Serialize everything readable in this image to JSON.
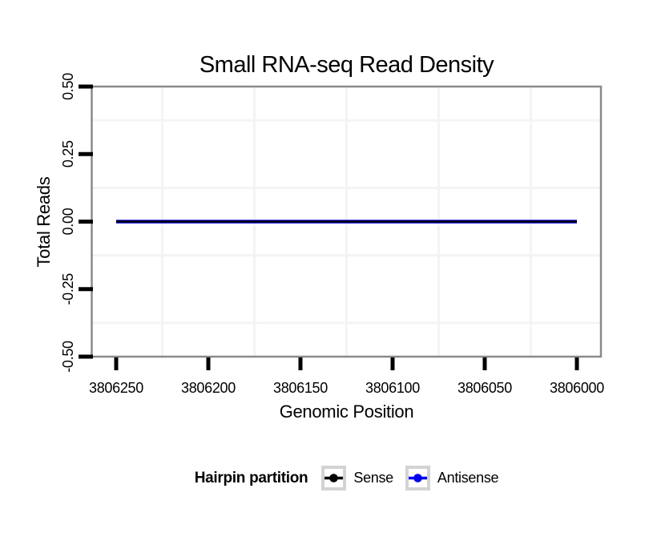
{
  "chart_data": {
    "type": "line",
    "title": "Small RNA-seq Read Density",
    "xlabel": "Genomic Position",
    "ylabel": "Total Reads",
    "x_axis": {
      "reversed": true,
      "tick_values": [
        3806250,
        3806200,
        3806150,
        3806100,
        3806050,
        3806000
      ],
      "tick_labels": [
        "3806250",
        "3806200",
        "3806150",
        "3806100",
        "3806050",
        "3806000"
      ]
    },
    "y_axis": {
      "range": [
        -0.5,
        0.5
      ],
      "tick_values": [
        0.5,
        0.25,
        0,
        -0.25,
        -0.5
      ],
      "tick_labels": [
        "0.50",
        "0.25",
        "0.00",
        "-0.25",
        "-0.50"
      ]
    },
    "grid": "minor gridlines only, very light gray; white panel with gray border",
    "legend_position": "bottom",
    "series": [
      {
        "name": "Sense",
        "color": "#000000",
        "x": [
          3806250,
          3806000
        ],
        "y": [
          0,
          0
        ]
      },
      {
        "name": "Antisense",
        "color": "#0000EE",
        "x": [
          3806250,
          3806000
        ],
        "y": [
          0,
          0
        ]
      }
    ],
    "legend": {
      "title": "Hairpin partition",
      "entries": [
        {
          "label": "Sense",
          "color": "#000000"
        },
        {
          "label": "Antisense",
          "color": "#0000EE"
        }
      ]
    },
    "colors": {
      "panel_border": "#8a8a8a",
      "minor_grid": "#f4f4f4",
      "tick_marks": "#000000",
      "legend_key_border": "#d3d3d3"
    }
  }
}
